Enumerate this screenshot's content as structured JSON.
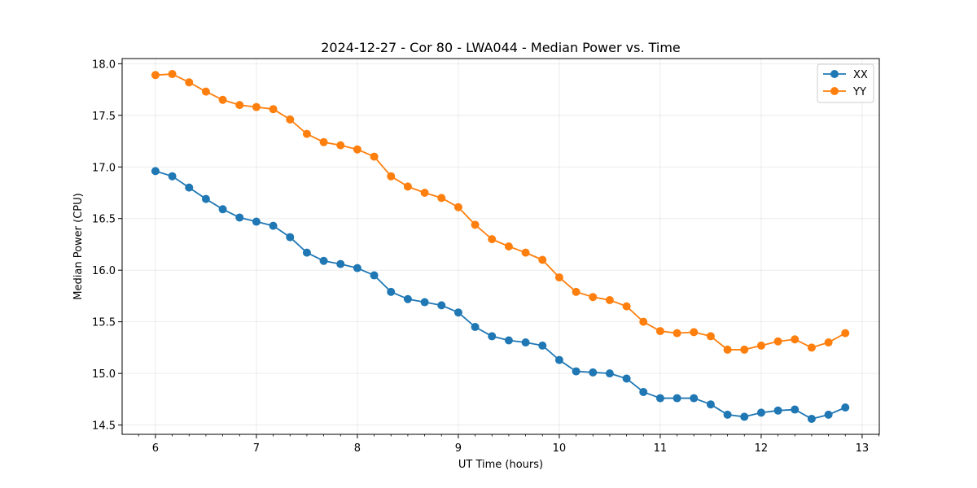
{
  "chart_data": {
    "type": "line",
    "title": "2024-12-27 - Cor 80 - LWA044 - Median Power vs. Time",
    "xlabel": "UT Time (hours)",
    "ylabel": "Median Power (CPU)",
    "xlim": [
      5.67,
      13.17
    ],
    "ylim": [
      14.41,
      18.05
    ],
    "xticks": [
      6,
      7,
      8,
      9,
      10,
      11,
      12,
      13
    ],
    "yticks": [
      14.5,
      15.0,
      15.5,
      16.0,
      16.5,
      17.0,
      17.5,
      18.0
    ],
    "ytick_labels": [
      "14.5",
      "15.0",
      "15.5",
      "16.0",
      "16.5",
      "17.0",
      "17.5",
      "18.0"
    ],
    "grid": true,
    "legend_position": "top-right",
    "x": [
      6.0,
      6.1667,
      6.3333,
      6.5,
      6.6667,
      6.8333,
      7.0,
      7.1667,
      7.3333,
      7.5,
      7.6667,
      7.8333,
      8.0,
      8.1667,
      8.3333,
      8.5,
      8.6667,
      8.8333,
      9.0,
      9.1667,
      9.3333,
      9.5,
      9.6667,
      9.8333,
      10.0,
      10.1667,
      10.3333,
      10.5,
      10.6667,
      10.8333,
      11.0,
      11.1667,
      11.3333,
      11.5,
      11.6667,
      11.8333,
      12.0,
      12.1667,
      12.3333,
      12.5,
      12.6667,
      12.8333
    ],
    "series": [
      {
        "name": "XX",
        "color": "#1f77b4",
        "values": [
          16.96,
          16.91,
          16.8,
          16.69,
          16.59,
          16.51,
          16.47,
          16.43,
          16.32,
          16.17,
          16.09,
          16.06,
          16.02,
          15.95,
          15.79,
          15.72,
          15.69,
          15.66,
          15.59,
          15.45,
          15.36,
          15.32,
          15.3,
          15.27,
          15.13,
          15.02,
          15.01,
          15.0,
          14.95,
          14.82,
          14.76,
          14.76,
          14.76,
          14.7,
          14.6,
          14.58,
          14.62,
          14.64,
          14.65,
          14.56,
          14.6,
          14.67
        ]
      },
      {
        "name": "YY",
        "color": "#ff7f0e",
        "values": [
          17.89,
          17.9,
          17.82,
          17.73,
          17.65,
          17.6,
          17.58,
          17.56,
          17.46,
          17.32,
          17.24,
          17.21,
          17.17,
          17.1,
          16.91,
          16.81,
          16.75,
          16.7,
          16.61,
          16.44,
          16.3,
          16.23,
          16.17,
          16.1,
          15.93,
          15.79,
          15.74,
          15.71,
          15.65,
          15.5,
          15.41,
          15.39,
          15.4,
          15.36,
          15.23,
          15.23,
          15.27,
          15.31,
          15.33,
          15.25,
          15.3,
          15.39
        ]
      }
    ]
  }
}
